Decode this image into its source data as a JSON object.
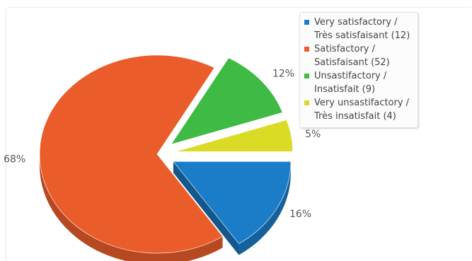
{
  "chart_data": {
    "type": "pie",
    "title": "",
    "slices": [
      {
        "label": "Very satisfactory / Très satisfaisant (12)",
        "count": 12,
        "percent_label": "16%",
        "color": "#1b7cc8"
      },
      {
        "label": "Satisfactory / Satisfaisant (52)",
        "count": 52,
        "percent_label": "68%",
        "color": "#ea5d2b"
      },
      {
        "label": "Unsastifactory / Insatisfait (9)",
        "count": 9,
        "percent_label": "12%",
        "color": "#3fba45"
      },
      {
        "label": "Very unsastifactory / Très insatisfait (4)",
        "count": 4,
        "percent_label": "5%",
        "color": "#dadb25"
      }
    ],
    "legend_placement": "top-right",
    "exploded": true,
    "style": "3d"
  }
}
